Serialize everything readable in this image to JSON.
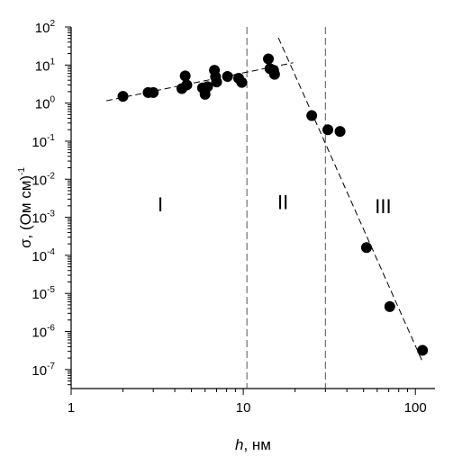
{
  "chart_data": {
    "type": "scatter",
    "xlabel_var": "h",
    "xlabel_unit": ", нм",
    "ylabel_main": "σ, (Ом см)",
    "ylabel_sup": "-1",
    "x_scale": "log",
    "y_scale": "log",
    "xlim": [
      1,
      130
    ],
    "ylim_exp": [
      -7.5,
      2
    ],
    "x_ticks": [
      {
        "value": 1,
        "label": "1"
      },
      {
        "value": 10,
        "label": "10"
      },
      {
        "value": 100,
        "label": "100"
      }
    ],
    "y_ticks": [
      {
        "exp": 2,
        "base": "10",
        "sup": "2"
      },
      {
        "exp": 1,
        "base": "10",
        "sup": "1"
      },
      {
        "exp": 0,
        "base": "10",
        "sup": "0"
      },
      {
        "exp": -1,
        "base": "10",
        "sup": "-1"
      },
      {
        "exp": -2,
        "base": "10",
        "sup": "-2"
      },
      {
        "exp": -3,
        "base": "10",
        "sup": "-3"
      },
      {
        "exp": -4,
        "base": "10",
        "sup": "-4"
      },
      {
        "exp": -5,
        "base": "10",
        "sup": "-5"
      },
      {
        "exp": -6,
        "base": "10",
        "sup": "-6"
      },
      {
        "exp": -7,
        "base": "10",
        "sup": "-7"
      }
    ],
    "points": [
      {
        "x": 2.0,
        "y": 1.5
      },
      {
        "x": 2.8,
        "y": 1.9
      },
      {
        "x": 3.0,
        "y": 1.9
      },
      {
        "x": 4.4,
        "y": 2.4
      },
      {
        "x": 4.6,
        "y": 5.2
      },
      {
        "x": 4.7,
        "y": 3.0
      },
      {
        "x": 5.8,
        "y": 2.5
      },
      {
        "x": 6.0,
        "y": 1.7
      },
      {
        "x": 6.2,
        "y": 2.7
      },
      {
        "x": 6.8,
        "y": 7.3
      },
      {
        "x": 6.9,
        "y": 4.9
      },
      {
        "x": 7.0,
        "y": 3.6
      },
      {
        "x": 8.1,
        "y": 5.0
      },
      {
        "x": 9.4,
        "y": 4.5
      },
      {
        "x": 9.8,
        "y": 3.5
      },
      {
        "x": 14.0,
        "y": 14.5
      },
      {
        "x": 14.3,
        "y": 8.0
      },
      {
        "x": 15.0,
        "y": 7.3
      },
      {
        "x": 15.2,
        "y": 5.7
      },
      {
        "x": 25.0,
        "y": 0.47
      },
      {
        "x": 31.0,
        "y": 0.2
      },
      {
        "x": 36.5,
        "y": 0.18
      },
      {
        "x": 52.0,
        "y": 0.00016
      },
      {
        "x": 71.0,
        "y": 4.5e-06
      },
      {
        "x": 110.0,
        "y": 3.2e-07
      }
    ],
    "fit_lines": [
      {
        "x": [
          1.6,
          19.5
        ],
        "y": [
          1.15,
          11.5
        ]
      },
      {
        "x": [
          16.0,
          110.0
        ],
        "y": [
          52,
          1.6e-07
        ]
      }
    ],
    "dividers_x": [
      10.5,
      30.0
    ],
    "regions": [
      {
        "label": "I",
        "x": 3.3,
        "y_exp": -2.65
      },
      {
        "label": "II",
        "x": 17.0,
        "y_exp": -2.6
      },
      {
        "label": "III",
        "x": 65.0,
        "y_exp": -2.7
      }
    ]
  }
}
